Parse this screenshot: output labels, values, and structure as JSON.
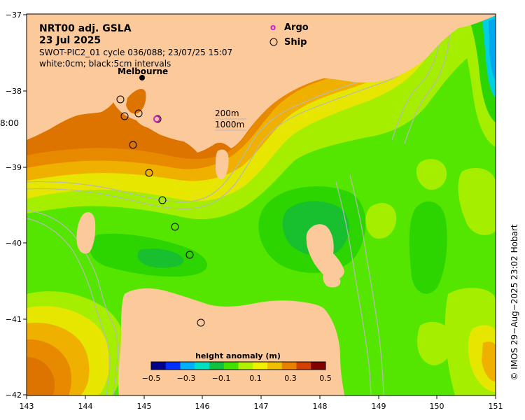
{
  "title": {
    "line1": "NRT00 adj. GSLA",
    "line2": "23 Jul 2025",
    "line3": "SWOT-PIC2_01 cycle 036/088; 23/07/25 15:07",
    "line4": "white:0cm; black:5cm intervals"
  },
  "legend": {
    "argo_label": "Argo",
    "ship_label": "Ship",
    "argo_symbol": "o",
    "argo_color": "#cc22cc"
  },
  "isobaths": {
    "label1": "200m",
    "label2": "1000m"
  },
  "place_labels": {
    "melbourne": "Melbourne",
    "time_stub": "8:00"
  },
  "x_axis": {
    "ticks": [
      "143",
      "144",
      "145",
      "146",
      "147",
      "148",
      "149",
      "150",
      "151"
    ]
  },
  "y_axis": {
    "ticks": [
      "−37",
      "−38",
      "−39",
      "−40",
      "−41",
      "−42"
    ]
  },
  "colorbar": {
    "title": "height anomaly (m)",
    "ticks": [
      "−0.5",
      "−0.3",
      "−0.1",
      "0.1",
      "0.3",
      "0.5"
    ],
    "range": [
      -0.5,
      0.5
    ],
    "colors": [
      "#00008f",
      "#0030ff",
      "#00b0ff",
      "#00e0c0",
      "#10c040",
      "#40e000",
      "#b0f000",
      "#f0f000",
      "#f0c000",
      "#e88000",
      "#d04000",
      "#800000"
    ]
  },
  "credit": "© IMOS 29−Aug−2025 23:02 Hobart",
  "map_colors": {
    "land": "#fcc99a",
    "sea_base": "#55e600",
    "green_mid": "#2cd400",
    "green_dark": "#18c030",
    "yellow_green": "#a6ee00",
    "yellow": "#e6e600",
    "orange_light": "#f0b000",
    "orange": "#e88a00",
    "orange_dark": "#dd7400",
    "cyan": "#00d0e0",
    "blue": "#00a8f0"
  }
}
